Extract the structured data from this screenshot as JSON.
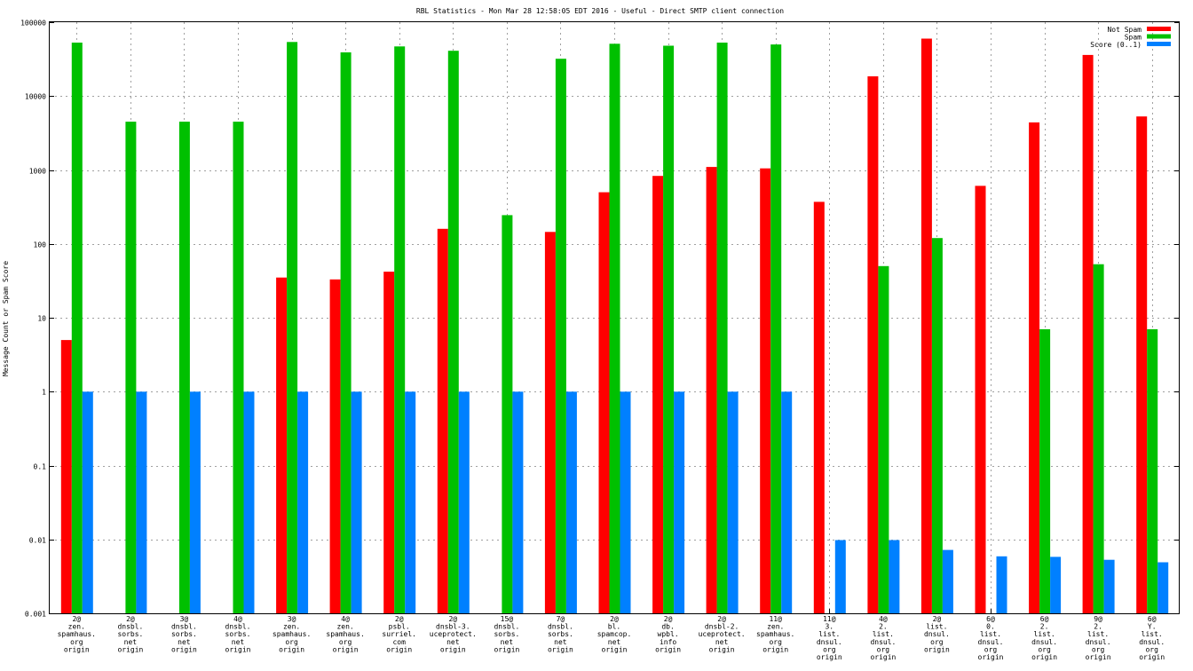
{
  "chart_data": {
    "type": "bar",
    "title": "RBL Statistics - Mon Mar 28 12:58:05 EDT 2016 - Useful - Direct SMTP client connection",
    "xlabel": "",
    "ylabel": "Message Count or Spam Score",
    "y_scale": "log",
    "ylim": [
      0.001,
      100000
    ],
    "yticks": [
      "0.001",
      "0.01",
      "0.1",
      "1",
      "10",
      "100",
      "1000",
      "10000",
      "100000"
    ],
    "grid": true,
    "legend_position": "top-right",
    "categories": [
      [
        "2@",
        "zen.",
        "spamhaus.",
        "org",
        "origin"
      ],
      [
        "2@",
        "dnsbl.",
        "sorbs.",
        "net",
        "origin"
      ],
      [
        "3@",
        "dnsbl.",
        "sorbs.",
        "net",
        "origin"
      ],
      [
        "4@",
        "dnsbl.",
        "sorbs.",
        "net",
        "origin"
      ],
      [
        "3@",
        "zen.",
        "spamhaus.",
        "org",
        "origin"
      ],
      [
        "4@",
        "zen.",
        "spamhaus.",
        "org",
        "origin"
      ],
      [
        "2@",
        "psbl.",
        "surriel.",
        "com",
        "origin"
      ],
      [
        "2@",
        "dnsbl-3.",
        "uceprotect.",
        "net",
        "origin"
      ],
      [
        "15@",
        "dnsbl.",
        "sorbs.",
        "net",
        "origin"
      ],
      [
        "7@",
        "dnsbl.",
        "sorbs.",
        "net",
        "origin"
      ],
      [
        "2@",
        "bl.",
        "spamcop.",
        "net",
        "origin"
      ],
      [
        "2@",
        "db.",
        "wpbl.",
        "info",
        "origin"
      ],
      [
        "2@",
        "dnsbl-2.",
        "uceprotect.",
        "net",
        "origin"
      ],
      [
        "11@",
        "zen.",
        "spamhaus.",
        "org",
        "origin"
      ],
      [
        "11@",
        "3.",
        "list.",
        "dnsul.",
        "org",
        "origin"
      ],
      [
        "4@",
        "2.",
        "list.",
        "dnsul.",
        "org",
        "origin"
      ],
      [
        "2@",
        "list.",
        "dnsul.",
        "org",
        "origin"
      ],
      [
        "6@",
        "0.",
        "list.",
        "dnsul.",
        "org",
        "origin"
      ],
      [
        "6@",
        "2.",
        "list.",
        "dnsul.",
        "org",
        "origin"
      ],
      [
        "9@",
        "2.",
        "list.",
        "dnsul.",
        "org",
        "origin"
      ],
      [
        "6@",
        "Y.",
        "list.",
        "dnsul.",
        "org",
        "origin"
      ]
    ],
    "series": [
      {
        "name": "Not Spam",
        "color": "#ff0000",
        "values": [
          5,
          null,
          null,
          null,
          35,
          33,
          42,
          160,
          null,
          145,
          500,
          830,
          1100,
          1050,
          370,
          18500,
          60000,
          610,
          4400,
          36000,
          5300
        ]
      },
      {
        "name": "Spam",
        "color": "#00c000",
        "values": [
          53000,
          4500,
          4500,
          4500,
          54000,
          39000,
          47000,
          41000,
          245,
          32000,
          51000,
          48000,
          53000,
          50000,
          null,
          50,
          120,
          null,
          7,
          53,
          7
        ]
      },
      {
        "name": "Score (0..1)",
        "color": "#0080ff",
        "values": [
          1,
          1,
          1,
          1,
          1,
          1,
          1,
          1,
          1,
          1,
          1,
          1,
          1,
          1,
          0.0098,
          0.0098,
          0.0072,
          0.0059,
          0.0058,
          0.0053,
          0.0049
        ]
      }
    ]
  }
}
